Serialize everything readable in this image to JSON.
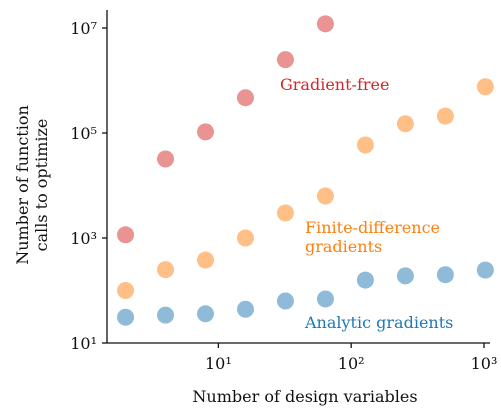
{
  "chart_data": {
    "type": "scatter",
    "xlabel": "Number of design variables",
    "ylabel": [
      "Number of function",
      "calls to optimize"
    ],
    "x": [
      2,
      4,
      8,
      16,
      32,
      64,
      128,
      256,
      512,
      1024
    ],
    "series": [
      {
        "name": "Gradient-free",
        "color": "#d62728",
        "values": [
          1150,
          32000,
          105000,
          470000,
          2500000,
          12000000,
          null,
          null,
          null,
          null
        ]
      },
      {
        "name": "Finite-difference gradients",
        "color": "#ff7f0e",
        "values": [
          100,
          250,
          380,
          1000,
          3000,
          6300,
          59000,
          150000,
          210000,
          760000
        ]
      },
      {
        "name": "Analytic gradients",
        "color": "#1f77b4",
        "values": [
          31,
          34,
          36,
          44,
          63,
          69,
          158,
          190,
          200,
          245
        ]
      }
    ],
    "marker_alpha": 0.5,
    "xscale": "log",
    "yscale": "log",
    "xlim": [
      1.45,
      1110
    ],
    "ylim": [
      10,
      22000000
    ],
    "xticks": [
      {
        "value": 10,
        "label": "10¹"
      },
      {
        "value": 100,
        "label": "10²"
      },
      {
        "value": 1000,
        "label": "10³"
      }
    ],
    "yticks": [
      {
        "value": 10,
        "label": "10¹"
      },
      {
        "value": 1000,
        "label": "10³"
      },
      {
        "value": 100000,
        "label": "10⁵"
      },
      {
        "value": 10000000,
        "label": "10⁷"
      }
    ]
  }
}
